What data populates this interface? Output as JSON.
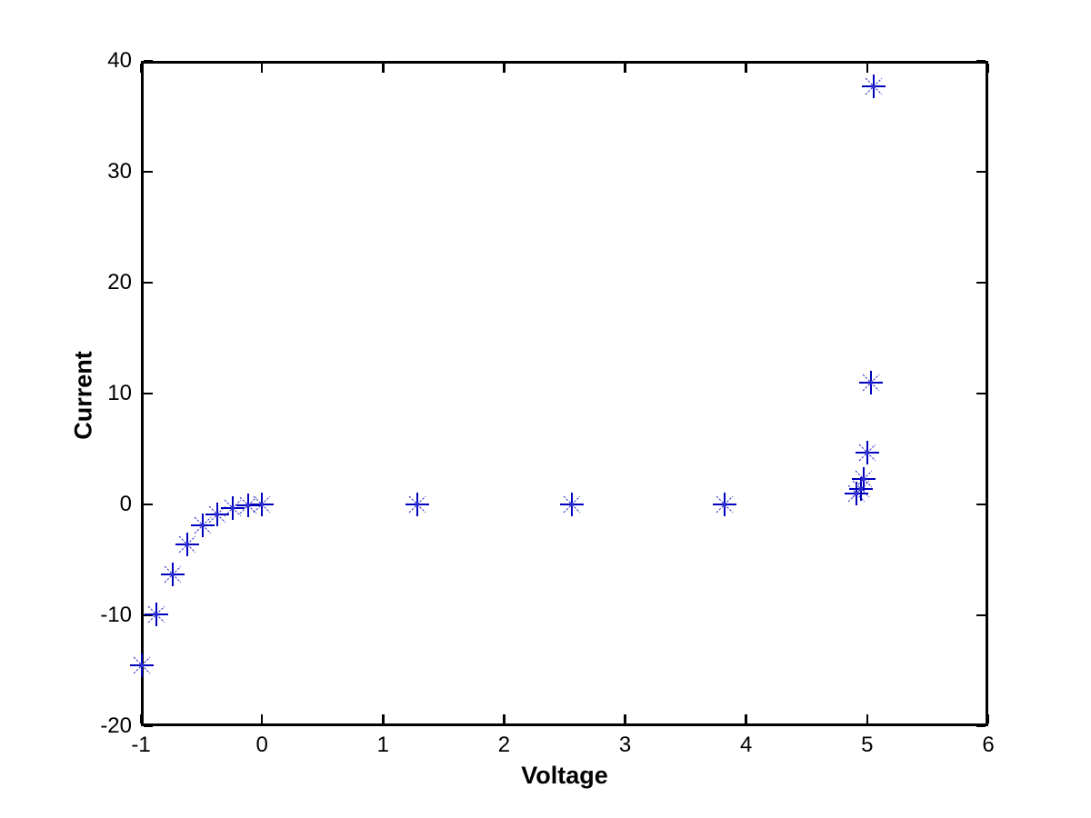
{
  "figure": {
    "background_color": "#ffffff",
    "axis_color": "#000000"
  },
  "chart_data": {
    "type": "scatter",
    "title": "",
    "xlabel": "Voltage",
    "ylabel": "Current",
    "xlim": [
      -1,
      6
    ],
    "ylim": [
      -20,
      40
    ],
    "xticks": [
      -1,
      0,
      1,
      2,
      3,
      4,
      5,
      6
    ],
    "yticks": [
      -20,
      -10,
      0,
      10,
      20,
      30,
      40
    ],
    "grid": false,
    "legend_position": "none",
    "marker": {
      "style": "asterisk",
      "color": "#0000BE",
      "diagonal_color": "#3A3AC8",
      "center_dot_color": "#2D2DD2"
    },
    "points": [
      {
        "x": -0.99,
        "y": -14.5
      },
      {
        "x": -0.87,
        "y": -9.9
      },
      {
        "x": -0.74,
        "y": -6.3
      },
      {
        "x": -0.62,
        "y": -3.6
      },
      {
        "x": -0.49,
        "y": -1.9
      },
      {
        "x": -0.37,
        "y": -0.9
      },
      {
        "x": -0.24,
        "y": -0.3
      },
      {
        "x": -0.11,
        "y": -0.1
      },
      {
        "x": 0.0,
        "y": 0.0
      },
      {
        "x": 1.28,
        "y": 0.0
      },
      {
        "x": 2.56,
        "y": 0.0
      },
      {
        "x": 3.82,
        "y": 0.0
      },
      {
        "x": 4.91,
        "y": 1.0
      },
      {
        "x": 4.95,
        "y": 1.4
      },
      {
        "x": 4.97,
        "y": 2.3
      },
      {
        "x": 5.0,
        "y": 4.7
      },
      {
        "x": 5.03,
        "y": 11.0
      },
      {
        "x": 5.05,
        "y": 37.7
      }
    ]
  }
}
